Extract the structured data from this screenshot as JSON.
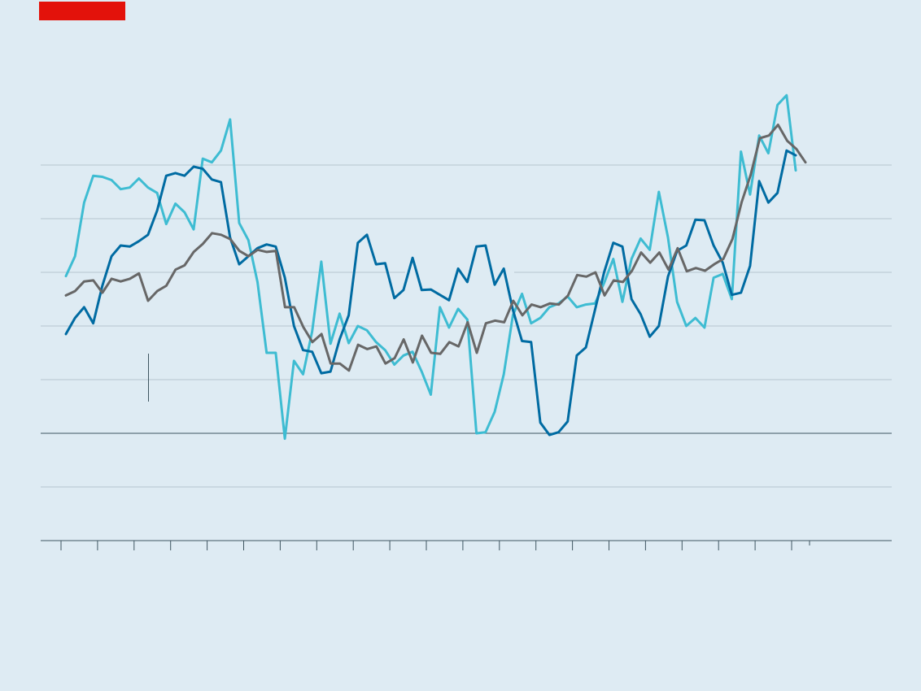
{
  "colors": {
    "background": "#deebf3",
    "brand_tag": "#e3120b",
    "series_1": "#006ba2",
    "series_2": "#3ebcd2",
    "series_3": "#676767",
    "gridline": "#b7c6cf",
    "baseline": "#3f5661"
  },
  "chart_data": {
    "type": "line",
    "title": "",
    "xlabel": "",
    "ylabel": "",
    "ylim": [
      -1,
      6
    ],
    "y_gridlines": [
      0,
      1,
      2,
      3,
      4,
      5,
      6
    ],
    "y_baseline": 1,
    "grid": true,
    "x_ticks": 21,
    "series": [
      {
        "values": [
          2.85,
          3.15,
          3.35,
          3.05,
          3.75,
          4.3,
          4.5,
          4.48,
          4.58,
          4.7,
          5.15,
          5.8,
          5.85,
          5.8,
          5.97,
          5.93,
          5.73,
          5.68,
          4.65,
          4.15,
          4.3,
          4.45,
          4.52,
          4.48,
          3.9,
          3.0,
          2.55,
          2.52,
          2.12,
          2.15,
          2.75,
          3.2,
          4.55,
          4.7,
          4.15,
          4.17,
          3.52,
          3.67,
          4.27,
          3.67,
          3.68,
          3.58,
          3.48,
          4.07,
          3.82,
          4.48,
          4.5,
          3.77,
          4.07,
          3.3,
          2.72,
          2.7,
          1.2,
          0.97,
          1.02,
          1.22,
          2.45,
          2.6,
          3.3,
          4.0,
          4.55,
          4.48,
          3.5,
          3.22,
          2.8,
          3.0,
          3.92,
          4.4,
          4.5,
          4.98,
          4.97,
          4.5,
          4.18,
          3.58,
          3.62,
          4.12,
          5.7,
          5.3,
          5.48,
          6.27,
          6.18
        ]
      },
      {
        "values": [
          3.93,
          4.3,
          5.3,
          5.8,
          5.78,
          5.72,
          5.55,
          5.58,
          5.75,
          5.58,
          5.48,
          4.9,
          5.28,
          5.12,
          4.8,
          6.12,
          6.05,
          6.27,
          6.85,
          4.92,
          4.6,
          3.82,
          2.5,
          2.5,
          0.9,
          2.35,
          2.1,
          2.9,
          4.2,
          2.67,
          3.23,
          2.68,
          3.0,
          2.92,
          2.7,
          2.55,
          2.28,
          2.45,
          2.52,
          2.15,
          1.72,
          3.35,
          2.97,
          3.32,
          3.12,
          1.0,
          1.02,
          1.4,
          2.1,
          3.2,
          3.6,
          3.05,
          3.15,
          3.35,
          3.42,
          3.55,
          3.35,
          3.4,
          3.42,
          3.8,
          4.25,
          3.45,
          4.25,
          4.63,
          4.42,
          5.5,
          4.65,
          3.45,
          3.0,
          3.15,
          2.97,
          3.9,
          3.97,
          3.5,
          6.25,
          5.45,
          6.55,
          6.22,
          7.12,
          7.3,
          5.9
        ]
      },
      {
        "values": [
          3.57,
          3.65,
          3.83,
          3.85,
          3.62,
          3.88,
          3.83,
          3.88,
          3.98,
          3.47,
          3.65,
          3.75,
          4.05,
          4.13,
          4.38,
          4.53,
          4.73,
          4.7,
          4.62,
          4.4,
          4.3,
          4.42,
          4.38,
          4.4,
          3.35,
          3.35,
          2.98,
          2.7,
          2.85,
          2.3,
          2.3,
          2.17,
          2.65,
          2.57,
          2.62,
          2.3,
          2.4,
          2.75,
          2.32,
          2.82,
          2.5,
          2.48,
          2.7,
          2.62,
          3.07,
          2.5,
          3.05,
          3.1,
          3.07,
          3.47,
          3.2,
          3.4,
          3.35,
          3.42,
          3.4,
          3.57,
          3.95,
          3.92,
          4.0,
          3.57,
          3.85,
          3.82,
          4.03,
          4.37,
          4.18,
          4.37,
          4.05,
          4.45,
          4.02,
          4.08,
          4.03,
          4.15,
          4.25,
          4.62,
          5.3,
          5.82,
          6.5,
          6.55,
          6.75,
          6.45,
          6.3,
          6.05
        ]
      }
    ]
  }
}
